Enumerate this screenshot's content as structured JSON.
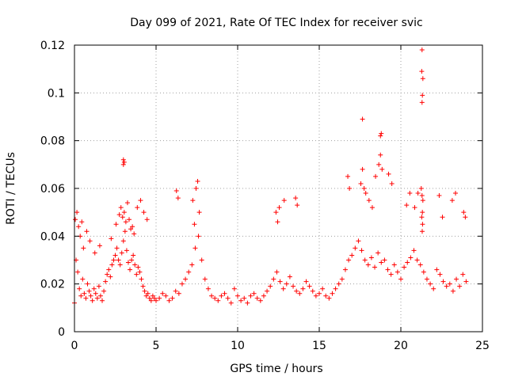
{
  "chart_data": {
    "type": "scatter",
    "title": "Day 099 of 2021, Rate Of TEC Index for receiver svic",
    "xlabel": "GPS time / hours",
    "ylabel": "ROTI / TECUs",
    "xlim": [
      0,
      25
    ],
    "ylim": [
      0,
      0.12
    ],
    "x_ticks": [
      0,
      5,
      10,
      15,
      20,
      25
    ],
    "x_tick_labels": [
      "0",
      "5",
      "10",
      "15",
      "20",
      "25"
    ],
    "y_ticks": [
      0,
      0.02,
      0.04,
      0.06,
      0.08,
      0.1,
      0.12
    ],
    "y_tick_labels": [
      "0",
      "0.02",
      "0.04",
      "0.06",
      "0.08",
      "0.1",
      "0.12"
    ],
    "grid": true,
    "marker": "+",
    "color": "#ff0000",
    "x": [
      0.0,
      0.1,
      0.2,
      0.3,
      0.4,
      0.5,
      0.6,
      0.7,
      0.8,
      0.9,
      1.0,
      1.1,
      1.2,
      1.3,
      1.4,
      1.5,
      1.6,
      1.7,
      1.8,
      1.9,
      2.0,
      2.1,
      2.2,
      2.3,
      2.4,
      2.5,
      2.6,
      2.7,
      2.8,
      2.9,
      3.0,
      3.1,
      3.2,
      3.3,
      3.4,
      3.5,
      3.6,
      3.7,
      3.8,
      3.9,
      4.0,
      4.1,
      4.2,
      4.3,
      4.4,
      4.5,
      4.6,
      4.7,
      4.8,
      4.9,
      5.0,
      5.2,
      5.4,
      5.6,
      5.8,
      6.0,
      6.2,
      6.4,
      6.6,
      6.8,
      7.0,
      7.2,
      7.4,
      7.6,
      7.8,
      8.0,
      8.2,
      8.4,
      8.6,
      8.8,
      9.0,
      9.2,
      9.4,
      9.6,
      9.8,
      10.0,
      10.2,
      10.4,
      10.6,
      10.8,
      11.0,
      11.2,
      11.4,
      11.6,
      11.8,
      12.0,
      12.2,
      12.4,
      12.6,
      12.8,
      13.0,
      13.2,
      13.4,
      13.6,
      13.8,
      14.0,
      14.2,
      14.4,
      14.6,
      14.8,
      15.0,
      15.2,
      15.4,
      15.6,
      15.8,
      16.0,
      16.2,
      16.4,
      16.6,
      16.8,
      17.0,
      17.2,
      17.4,
      17.6,
      17.8,
      18.0,
      18.2,
      18.4,
      18.6,
      18.8,
      19.0,
      19.2,
      19.4,
      19.6,
      19.8,
      20.0,
      20.2,
      20.4,
      20.6,
      20.8,
      21.0,
      21.2,
      21.4,
      21.6,
      21.8,
      22.0,
      22.2,
      22.4,
      22.6,
      22.8,
      23.0,
      23.2,
      23.4,
      23.6,
      23.8,
      24.0,
      0.05,
      0.15,
      0.25,
      0.35,
      0.45,
      0.55,
      0.75,
      0.95,
      1.25,
      1.55,
      2.25,
      2.55,
      2.75,
      2.85,
      2.95,
      3.05,
      3.15,
      3.25,
      3.35,
      3.45,
      3.55,
      3.65,
      3.85,
      4.05,
      4.25,
      4.45,
      6.25,
      6.35,
      7.25,
      7.35,
      7.45,
      7.55,
      7.65,
      12.35,
      12.45,
      12.55,
      12.85,
      13.55,
      13.65,
      16.75,
      16.85,
      17.55,
      17.65,
      17.75,
      17.85,
      18.05,
      18.25,
      18.45,
      18.65,
      18.75,
      18.85,
      19.25,
      19.45,
      20.35,
      20.55,
      20.85,
      21.05,
      21.25,
      21.3,
      21.35,
      21.32,
      21.28,
      21.33,
      21.31,
      22.35,
      22.55,
      23.15,
      23.35,
      23.85,
      23.95,
      3.0,
      3.0,
      3.05,
      18.75,
      18.8,
      17.65,
      21.3,
      21.28,
      21.35,
      21.32,
      21.3
    ],
    "y": [
      0.012,
      0.03,
      0.025,
      0.018,
      0.015,
      0.022,
      0.016,
      0.014,
      0.02,
      0.017,
      0.015,
      0.013,
      0.018,
      0.016,
      0.014,
      0.019,
      0.015,
      0.013,
      0.017,
      0.021,
      0.024,
      0.026,
      0.023,
      0.028,
      0.03,
      0.032,
      0.035,
      0.03,
      0.028,
      0.033,
      0.038,
      0.042,
      0.034,
      0.029,
      0.026,
      0.03,
      0.032,
      0.028,
      0.024,
      0.027,
      0.025,
      0.022,
      0.019,
      0.017,
      0.015,
      0.016,
      0.014,
      0.013,
      0.015,
      0.014,
      0.013,
      0.014,
      0.016,
      0.015,
      0.013,
      0.014,
      0.017,
      0.016,
      0.02,
      0.022,
      0.025,
      0.028,
      0.035,
      0.04,
      0.03,
      0.022,
      0.018,
      0.015,
      0.014,
      0.013,
      0.015,
      0.016,
      0.014,
      0.012,
      0.018,
      0.015,
      0.013,
      0.014,
      0.012,
      0.015,
      0.016,
      0.014,
      0.013,
      0.015,
      0.017,
      0.019,
      0.022,
      0.025,
      0.021,
      0.018,
      0.02,
      0.023,
      0.019,
      0.017,
      0.016,
      0.018,
      0.021,
      0.019,
      0.017,
      0.015,
      0.016,
      0.018,
      0.015,
      0.014,
      0.016,
      0.018,
      0.02,
      0.022,
      0.026,
      0.03,
      0.032,
      0.035,
      0.038,
      0.034,
      0.03,
      0.028,
      0.031,
      0.027,
      0.033,
      0.029,
      0.03,
      0.026,
      0.024,
      0.028,
      0.025,
      0.022,
      0.027,
      0.029,
      0.031,
      0.034,
      0.03,
      0.028,
      0.025,
      0.022,
      0.02,
      0.018,
      0.026,
      0.024,
      0.021,
      0.019,
      0.02,
      0.017,
      0.022,
      0.019,
      0.024,
      0.021,
      0.047,
      0.05,
      0.044,
      0.04,
      0.046,
      0.035,
      0.042,
      0.038,
      0.033,
      0.036,
      0.039,
      0.045,
      0.049,
      0.052,
      0.048,
      0.05,
      0.046,
      0.054,
      0.047,
      0.043,
      0.044,
      0.041,
      0.052,
      0.055,
      0.05,
      0.047,
      0.059,
      0.056,
      0.055,
      0.045,
      0.06,
      0.063,
      0.05,
      0.05,
      0.046,
      0.052,
      0.055,
      0.056,
      0.053,
      0.065,
      0.06,
      0.062,
      0.068,
      0.06,
      0.058,
      0.055,
      0.052,
      0.065,
      0.07,
      0.074,
      0.068,
      0.066,
      0.062,
      0.053,
      0.058,
      0.052,
      0.058,
      0.06,
      0.057,
      0.055,
      0.05,
      0.048,
      0.045,
      0.042,
      0.057,
      0.048,
      0.055,
      0.058,
      0.05,
      0.048,
      0.072,
      0.07,
      0.071,
      0.082,
      0.083,
      0.089,
      0.118,
      0.109,
      0.106,
      0.099,
      0.096
    ]
  }
}
